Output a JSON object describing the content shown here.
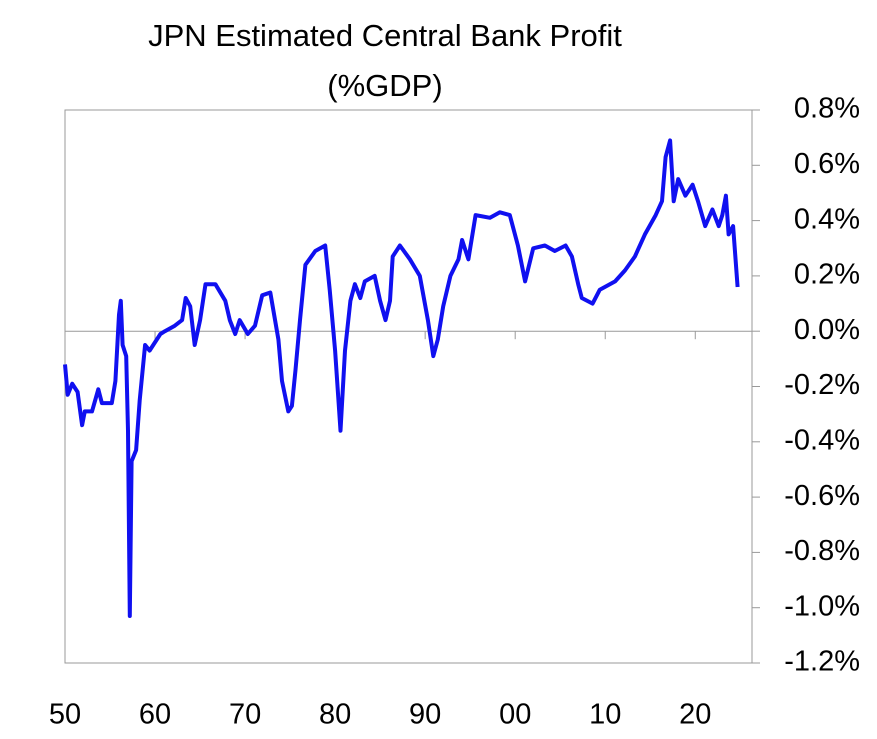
{
  "chart_data": {
    "type": "line",
    "title": [
      "JPN Estimated Central Bank Profit",
      "(%GDP)"
    ],
    "x": [
      1950,
      1950.3,
      1950.8,
      1951.4,
      1951.9,
      1952.2,
      1953,
      1953.7,
      1954.1,
      1955.2,
      1955.6,
      1956,
      1956.2,
      1956.4,
      1956.8,
      1957,
      1957.2,
      1957.4,
      1957.9,
      1958.3,
      1958.9,
      1959.4,
      1960.6,
      1961.1,
      1962.2,
      1963,
      1963.4,
      1963.9,
      1964.4,
      1965,
      1965.6,
      1966.7,
      1967.8,
      1968.3,
      1968.9,
      1969.4,
      1970.3,
      1971.1,
      1971.9,
      1972.8,
      1973.7,
      1974.1,
      1974.8,
      1975.2,
      1975.6,
      1976.1,
      1976.7,
      1977.8,
      1978.9,
      1979.4,
      1980,
      1980.6,
      1981.1,
      1981.7,
      1982.2,
      1982.8,
      1983.3,
      1984.4,
      1985,
      1985.6,
      1986.1,
      1986.4,
      1987.2,
      1988.3,
      1989.4,
      1990.3,
      1990.9,
      1991.4,
      1992,
      1992.8,
      1993.7,
      1994.1,
      1994.8,
      1995.6,
      1997.2,
      1998.3,
      1999.4,
      2000.3,
      2001.1,
      2002,
      2003.3,
      2004.4,
      2005.6,
      2006.3,
      2007,
      2007.4,
      2008.6,
      2009.4,
      2011.1,
      2012.2,
      2013.3,
      2014.4,
      2015.6,
      2016.3,
      2016.7,
      2017.2,
      2017.6,
      2018.1,
      2018.9,
      2019.7,
      2020.3,
      2021.1,
      2021.9,
      2022.6,
      2023,
      2023.4,
      2023.7,
      2024.2,
      2024.7
    ],
    "values": [
      -0.12,
      -0.23,
      -0.19,
      -0.22,
      -0.34,
      -0.29,
      -0.29,
      -0.21,
      -0.26,
      -0.26,
      -0.18,
      0.06,
      0.11,
      -0.05,
      -0.09,
      -0.36,
      -1.03,
      -0.47,
      -0.43,
      -0.25,
      -0.05,
      -0.07,
      -0.01,
      0.0,
      0.02,
      0.04,
      0.12,
      0.09,
      -0.05,
      0.04,
      0.17,
      0.17,
      0.11,
      0.04,
      -0.01,
      0.04,
      -0.01,
      0.02,
      0.13,
      0.14,
      -0.03,
      -0.18,
      -0.29,
      -0.27,
      -0.14,
      0.04,
      0.24,
      0.29,
      0.31,
      0.15,
      -0.07,
      -0.36,
      -0.07,
      0.11,
      0.17,
      0.12,
      0.18,
      0.2,
      0.11,
      0.04,
      0.11,
      0.27,
      0.31,
      0.26,
      0.2,
      0.04,
      -0.09,
      -0.03,
      0.09,
      0.2,
      0.26,
      0.33,
      0.26,
      0.42,
      0.41,
      0.43,
      0.42,
      0.31,
      0.18,
      0.3,
      0.31,
      0.29,
      0.31,
      0.27,
      0.17,
      0.12,
      0.1,
      0.15,
      0.18,
      0.22,
      0.27,
      0.35,
      0.42,
      0.47,
      0.63,
      0.69,
      0.47,
      0.55,
      0.49,
      0.53,
      0.47,
      0.38,
      0.44,
      0.38,
      0.42,
      0.49,
      0.35,
      0.38,
      0.16
    ],
    "color": "#1010f0",
    "xlim": [
      1950,
      2026.3
    ],
    "xticks": [
      {
        "value": 1950,
        "label": "50"
      },
      {
        "value": 1960,
        "label": "60"
      },
      {
        "value": 1970,
        "label": "70"
      },
      {
        "value": 1980,
        "label": "80"
      },
      {
        "value": 1990,
        "label": "90"
      },
      {
        "value": 2000,
        "label": "00"
      },
      {
        "value": 2010,
        "label": "10"
      },
      {
        "value": 2020,
        "label": "20"
      }
    ],
    "ylim": [
      -1.2,
      0.8
    ],
    "yticks": [
      {
        "value": 0.8,
        "label": "0.8%"
      },
      {
        "value": 0.6,
        "label": "0.6%"
      },
      {
        "value": 0.4,
        "label": "0.4%"
      },
      {
        "value": 0.2,
        "label": "0.2%"
      },
      {
        "value": 0,
        "label": "0.0%"
      },
      {
        "value": -0.2,
        "label": "-0.2%"
      },
      {
        "value": -0.4,
        "label": "-0.4%"
      },
      {
        "value": -0.6,
        "label": "-0.6%"
      },
      {
        "value": -0.8,
        "label": "-0.8%"
      },
      {
        "value": -1,
        "label": "-1.0%"
      },
      {
        "value": -1.2,
        "label": "-1.2%"
      }
    ],
    "yaxis_side": "right"
  }
}
